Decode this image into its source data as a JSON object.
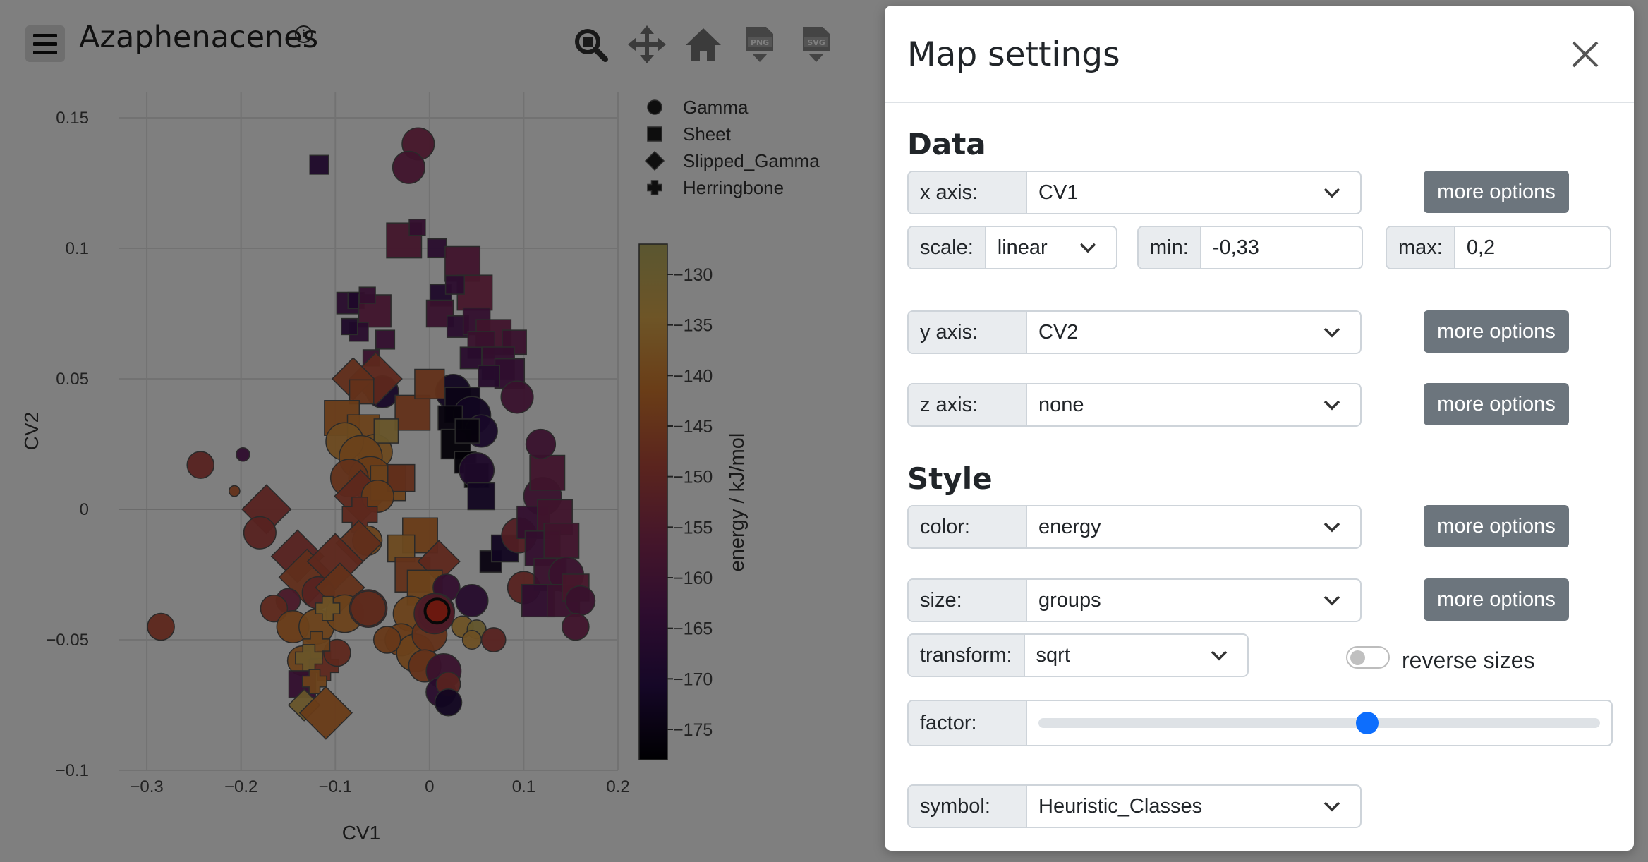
{
  "app": {
    "title": "Azaphenacenes",
    "toolbar": [
      "zoom-icon",
      "pan-icon",
      "home-icon",
      "download-png-icon",
      "download-svg-icon"
    ]
  },
  "chart_data": {
    "type": "scatter",
    "xlabel": "CV1",
    "ylabel": "CV2",
    "xlim": [
      -0.33,
      0.2
    ],
    "ylim": [
      -0.1,
      0.16
    ],
    "x_ticks": [
      "−0.3",
      "−0.2",
      "−0.1",
      "0",
      "0.1",
      "0.2"
    ],
    "x_tick_values": [
      -0.3,
      -0.2,
      -0.1,
      0,
      0.1,
      0.2
    ],
    "y_ticks": [
      "0.15",
      "0.1",
      "0.05",
      "0",
      "−0.05",
      "−0.1"
    ],
    "y_tick_values": [
      0.15,
      0.1,
      0.05,
      0,
      -0.05,
      -0.1
    ],
    "grid": true,
    "legend": [
      {
        "name": "Gamma",
        "symbol": "circle"
      },
      {
        "name": "Sheet",
        "symbol": "square"
      },
      {
        "name": "Slipped_Gamma",
        "symbol": "diamond"
      },
      {
        "name": "Herringbone",
        "symbol": "cross"
      }
    ],
    "legend_position": "top-right",
    "colorbar": {
      "label": "energy / kJ/mol",
      "range": [
        -178,
        -127
      ],
      "ticks": [
        "−130",
        "−135",
        "−140",
        "−145",
        "−150",
        "−155",
        "−160",
        "−165",
        "−170",
        "−175"
      ],
      "tick_values": [
        -130,
        -135,
        -140,
        -145,
        -150,
        -155,
        -160,
        -165,
        -170,
        -175
      ],
      "colorscale": [
        "#000004",
        "#2b0f4e",
        "#5c1a5e",
        "#8b2d55",
        "#b64a3c",
        "#d47a2f",
        "#dcaa4e",
        "#b5ad62"
      ]
    },
    "points": [
      {
        "x": -0.012,
        "y": 0.14,
        "e": -156,
        "s": "circle",
        "r": 12
      },
      {
        "x": -0.022,
        "y": 0.131,
        "e": -158,
        "s": "circle",
        "r": 12
      },
      {
        "x": -0.117,
        "y": 0.132,
        "e": -168,
        "s": "square",
        "r": 7
      },
      {
        "x": -0.027,
        "y": 0.103,
        "e": -157,
        "s": "square",
        "r": 13
      },
      {
        "x": -0.013,
        "y": 0.108,
        "e": -162,
        "s": "square",
        "r": 6
      },
      {
        "x": 0.008,
        "y": 0.1,
        "e": -165,
        "s": "square",
        "r": 7
      },
      {
        "x": 0.035,
        "y": 0.094,
        "e": -158,
        "s": "square",
        "r": 13
      },
      {
        "x": 0.048,
        "y": 0.083,
        "e": -156,
        "s": "square",
        "r": 13
      },
      {
        "x": 0.012,
        "y": 0.082,
        "e": -168,
        "s": "square",
        "r": 8
      },
      {
        "x": 0.027,
        "y": 0.086,
        "e": -164,
        "s": "square",
        "r": 7
      },
      {
        "x": -0.087,
        "y": 0.079,
        "e": -165,
        "s": "square",
        "r": 8
      },
      {
        "x": -0.078,
        "y": 0.08,
        "e": -168,
        "s": "square",
        "r": 6
      },
      {
        "x": -0.058,
        "y": 0.076,
        "e": -158,
        "s": "square",
        "r": 12
      },
      {
        "x": -0.066,
        "y": 0.082,
        "e": -162,
        "s": "square",
        "r": 6
      },
      {
        "x": -0.075,
        "y": 0.068,
        "e": -165,
        "s": "square",
        "r": 7
      },
      {
        "x": -0.062,
        "y": 0.058,
        "e": -160,
        "s": "square",
        "r": 6
      },
      {
        "x": -0.047,
        "y": 0.065,
        "e": -162,
        "s": "square",
        "r": 7
      },
      {
        "x": -0.085,
        "y": 0.07,
        "e": -168,
        "s": "square",
        "r": 6
      },
      {
        "x": 0.011,
        "y": 0.075,
        "e": -160,
        "s": "square",
        "r": 10
      },
      {
        "x": 0.03,
        "y": 0.07,
        "e": -165,
        "s": "square",
        "r": 8
      },
      {
        "x": 0.05,
        "y": 0.072,
        "e": -162,
        "s": "square",
        "r": 10
      },
      {
        "x": 0.068,
        "y": 0.066,
        "e": -158,
        "s": "square",
        "r": 13
      },
      {
        "x": 0.055,
        "y": 0.063,
        "e": -160,
        "s": "square",
        "r": 10
      },
      {
        "x": 0.09,
        "y": 0.064,
        "e": -160,
        "s": "square",
        "r": 9
      },
      {
        "x": 0.044,
        "y": 0.058,
        "e": -165,
        "s": "square",
        "r": 8
      },
      {
        "x": 0.073,
        "y": 0.056,
        "e": -162,
        "s": "square",
        "r": 12
      },
      {
        "x": 0.085,
        "y": 0.052,
        "e": -163,
        "s": "square",
        "r": 11
      },
      {
        "x": 0.063,
        "y": 0.051,
        "e": -166,
        "s": "square",
        "r": 8
      },
      {
        "x": 0.025,
        "y": 0.045,
        "e": -172,
        "s": "circle",
        "r": 13
      },
      {
        "x": 0.035,
        "y": 0.04,
        "e": -174,
        "s": "square",
        "r": 13
      },
      {
        "x": 0.045,
        "y": 0.036,
        "e": -172,
        "s": "circle",
        "r": 14
      },
      {
        "x": 0.022,
        "y": 0.035,
        "e": -176,
        "s": "square",
        "r": 9
      },
      {
        "x": 0.055,
        "y": 0.03,
        "e": -170,
        "s": "circle",
        "r": 12
      },
      {
        "x": 0.028,
        "y": 0.025,
        "e": -177,
        "s": "square",
        "r": 11
      },
      {
        "x": 0.04,
        "y": 0.03,
        "e": -176,
        "s": "square",
        "r": 9
      },
      {
        "x": 0.038,
        "y": 0.018,
        "e": -177,
        "s": "square",
        "r": 8
      },
      {
        "x": 0.05,
        "y": 0.013,
        "e": -178,
        "s": "square",
        "r": 9
      },
      {
        "x": 0.093,
        "y": 0.043,
        "e": -160,
        "s": "circle",
        "r": 12
      },
      {
        "x": -0.05,
        "y": 0.045,
        "e": -170,
        "s": "circle",
        "r": 12
      },
      {
        "x": -0.057,
        "y": 0.05,
        "e": -148,
        "s": "diamond",
        "r": 15
      },
      {
        "x": -0.081,
        "y": 0.05,
        "e": -146,
        "s": "diamond",
        "r": 12
      },
      {
        "x": -0.072,
        "y": 0.045,
        "e": -145,
        "s": "square",
        "r": 9
      },
      {
        "x": -0.018,
        "y": 0.037,
        "e": -145,
        "s": "square",
        "r": 13
      },
      {
        "x": -0.093,
        "y": 0.035,
        "e": -142,
        "s": "square",
        "r": 13
      },
      {
        "x": -0.07,
        "y": 0.03,
        "e": -140,
        "s": "square",
        "r": 12
      },
      {
        "x": -0.058,
        "y": 0.022,
        "e": -138,
        "s": "circle",
        "r": 13
      },
      {
        "x": -0.046,
        "y": 0.03,
        "e": -132,
        "s": "square",
        "r": 9
      },
      {
        "x": -0.09,
        "y": 0.026,
        "e": -138,
        "s": "circle",
        "r": 14
      },
      {
        "x": -0.073,
        "y": 0.02,
        "e": -140,
        "s": "circle",
        "r": 16
      },
      {
        "x": -0.063,
        "y": 0.012,
        "e": -142,
        "s": "circle",
        "r": 16
      },
      {
        "x": -0.085,
        "y": 0.012,
        "e": -145,
        "s": "circle",
        "r": 14
      },
      {
        "x": -0.073,
        "y": 0.005,
        "e": -148,
        "s": "diamond",
        "r": 15
      },
      {
        "x": -0.044,
        "y": 0.01,
        "e": -140,
        "s": "square",
        "r": 13
      },
      {
        "x": -0.03,
        "y": 0.012,
        "e": -146,
        "s": "square",
        "r": 10
      },
      {
        "x": -0.055,
        "y": 0.005,
        "e": -142,
        "s": "circle",
        "r": 12
      },
      {
        "x": -0.074,
        "y": -0.002,
        "e": -148,
        "s": "cross",
        "r": 13
      },
      {
        "x": -0.066,
        "y": -0.012,
        "e": -140,
        "s": "circle",
        "r": 11
      },
      {
        "x": -0.075,
        "y": -0.013,
        "e": -146,
        "s": "diamond",
        "r": 13
      },
      {
        "x": 0.0,
        "y": 0.048,
        "e": -145,
        "s": "square",
        "r": 11
      },
      {
        "x": -0.243,
        "y": 0.017,
        "e": -150,
        "s": "circle",
        "r": 10
      },
      {
        "x": -0.198,
        "y": 0.021,
        "e": -163,
        "s": "circle",
        "r": 5
      },
      {
        "x": -0.207,
        "y": 0.007,
        "e": -145,
        "s": "circle",
        "r": 4
      },
      {
        "x": -0.173,
        "y": 0.0,
        "e": -150,
        "s": "diamond",
        "r": 14
      },
      {
        "x": -0.18,
        "y": -0.009,
        "e": -150,
        "s": "circle",
        "r": 12
      },
      {
        "x": -0.14,
        "y": -0.018,
        "e": -150,
        "s": "diamond",
        "r": 15
      },
      {
        "x": -0.13,
        "y": -0.026,
        "e": -146,
        "s": "diamond",
        "r": 16
      },
      {
        "x": -0.1,
        "y": -0.02,
        "e": -148,
        "s": "diamond",
        "r": 16
      },
      {
        "x": -0.15,
        "y": -0.035,
        "e": -155,
        "s": "circle",
        "r": 9
      },
      {
        "x": -0.118,
        "y": -0.032,
        "e": -150,
        "s": "circle",
        "r": 12
      },
      {
        "x": -0.095,
        "y": -0.03,
        "e": -145,
        "s": "diamond",
        "r": 14
      },
      {
        "x": -0.165,
        "y": -0.038,
        "e": -148,
        "s": "circle",
        "r": 10
      },
      {
        "x": -0.145,
        "y": -0.045,
        "e": -142,
        "s": "circle",
        "r": 12
      },
      {
        "x": -0.12,
        "y": -0.045,
        "e": -140,
        "s": "circle",
        "r": 13
      },
      {
        "x": -0.09,
        "y": -0.04,
        "e": -140,
        "s": "circle",
        "r": 14
      },
      {
        "x": -0.108,
        "y": -0.038,
        "e": -135,
        "s": "cross",
        "r": 9
      },
      {
        "x": -0.135,
        "y": -0.058,
        "e": -140,
        "s": "circle",
        "r": 11
      },
      {
        "x": -0.112,
        "y": -0.06,
        "e": -148,
        "s": "cross",
        "r": 11
      },
      {
        "x": -0.098,
        "y": -0.055,
        "e": -148,
        "s": "circle",
        "r": 10
      },
      {
        "x": -0.12,
        "y": -0.052,
        "e": -140,
        "s": "cross",
        "r": 10
      },
      {
        "x": -0.128,
        "y": -0.057,
        "e": -133,
        "s": "cross",
        "r": 10
      },
      {
        "x": -0.135,
        "y": -0.067,
        "e": -162,
        "s": "square",
        "r": 10
      },
      {
        "x": -0.122,
        "y": -0.066,
        "e": -140,
        "s": "cross",
        "r": 9
      },
      {
        "x": -0.133,
        "y": -0.075,
        "e": -132,
        "s": "diamond",
        "r": 9
      },
      {
        "x": -0.11,
        "y": -0.078,
        "e": -142,
        "s": "diamond",
        "r": 15
      },
      {
        "x": -0.285,
        "y": -0.045,
        "e": -148,
        "s": "circle",
        "r": 10
      },
      {
        "x": -0.065,
        "y": -0.038,
        "e": -150,
        "s": "circle",
        "r": 14
      },
      {
        "x": -0.01,
        "y": -0.01,
        "e": -142,
        "s": "square",
        "r": 13
      },
      {
        "x": -0.03,
        "y": -0.015,
        "e": -138,
        "s": "square",
        "r": 10
      },
      {
        "x": -0.018,
        "y": -0.025,
        "e": -145,
        "s": "square",
        "r": 13
      },
      {
        "x": 0.01,
        "y": -0.02,
        "e": -148,
        "s": "diamond",
        "r": 12
      },
      {
        "x": -0.005,
        "y": -0.03,
        "e": -140,
        "s": "square",
        "r": 13
      },
      {
        "x": -0.02,
        "y": -0.04,
        "e": -140,
        "s": "circle",
        "r": 13
      },
      {
        "x": -0.03,
        "y": -0.05,
        "e": -142,
        "s": "circle",
        "r": 12
      },
      {
        "x": -0.015,
        "y": -0.055,
        "e": -140,
        "s": "circle",
        "r": 14
      },
      {
        "x": 0.0,
        "y": -0.048,
        "e": -145,
        "s": "circle",
        "r": 13
      },
      {
        "x": 0.018,
        "y": -0.03,
        "e": -162,
        "s": "circle",
        "r": 10
      },
      {
        "x": 0.007,
        "y": -0.04,
        "e": -150,
        "s": "circle",
        "r": 13
      },
      {
        "x": -0.005,
        "y": -0.06,
        "e": -145,
        "s": "circle",
        "r": 12
      },
      {
        "x": 0.015,
        "y": -0.062,
        "e": -160,
        "s": "circle",
        "r": 13
      },
      {
        "x": 0.012,
        "y": -0.07,
        "e": -165,
        "s": "circle",
        "r": 11
      },
      {
        "x": 0.02,
        "y": -0.067,
        "e": -150,
        "s": "circle",
        "r": 9
      },
      {
        "x": 0.02,
        "y": -0.074,
        "e": -172,
        "s": "circle",
        "r": 10
      },
      {
        "x": -0.045,
        "y": -0.05,
        "e": -143,
        "s": "circle",
        "r": 10
      },
      {
        "x": -0.065,
        "y": -0.038,
        "e": -147,
        "s": "circle",
        "r": 13
      },
      {
        "x": 0.045,
        "y": -0.035,
        "e": -166,
        "s": "circle",
        "r": 12
      },
      {
        "x": 0.008,
        "y": -0.039,
        "e": -152,
        "s": "circle",
        "r": 13
      },
      {
        "x": 0.035,
        "y": -0.045,
        "e": -135,
        "s": "circle",
        "r": 8
      },
      {
        "x": 0.05,
        "y": -0.046,
        "e": -130,
        "s": "circle",
        "r": 7
      },
      {
        "x": 0.045,
        "y": -0.05,
        "e": -136,
        "s": "circle",
        "r": 7
      },
      {
        "x": 0.068,
        "y": -0.05,
        "e": -150,
        "s": "circle",
        "r": 9
      },
      {
        "x": 0.065,
        "y": -0.02,
        "e": -175,
        "s": "square",
        "r": 8
      },
      {
        "x": 0.08,
        "y": -0.015,
        "e": -172,
        "s": "square",
        "r": 10
      },
      {
        "x": 0.1,
        "y": -0.03,
        "e": -150,
        "s": "circle",
        "r": 12
      },
      {
        "x": 0.095,
        "y": -0.01,
        "e": -152,
        "s": "circle",
        "r": 13
      },
      {
        "x": 0.05,
        "y": 0.015,
        "e": -168,
        "s": "circle",
        "r": 13
      },
      {
        "x": 0.055,
        "y": 0.005,
        "e": -172,
        "s": "square",
        "r": 10
      },
      {
        "x": 0.12,
        "y": 0.005,
        "e": -160,
        "s": "circle",
        "r": 14
      },
      {
        "x": 0.125,
        "y": 0.014,
        "e": -158,
        "s": "square",
        "r": 13
      },
      {
        "x": 0.118,
        "y": 0.025,
        "e": -160,
        "s": "circle",
        "r": 11
      },
      {
        "x": 0.11,
        "y": -0.005,
        "e": -162,
        "s": "square",
        "r": 12
      },
      {
        "x": 0.133,
        "y": -0.003,
        "e": -158,
        "s": "square",
        "r": 13
      },
      {
        "x": 0.12,
        "y": -0.015,
        "e": -162,
        "s": "square",
        "r": 13
      },
      {
        "x": 0.14,
        "y": -0.012,
        "e": -158,
        "s": "square",
        "r": 13
      },
      {
        "x": 0.128,
        "y": -0.025,
        "e": -160,
        "s": "square",
        "r": 12
      },
      {
        "x": 0.145,
        "y": -0.025,
        "e": -160,
        "s": "circle",
        "r": 13
      },
      {
        "x": 0.115,
        "y": -0.035,
        "e": -163,
        "s": "square",
        "r": 12
      },
      {
        "x": 0.142,
        "y": -0.035,
        "e": -160,
        "s": "square",
        "r": 12
      },
      {
        "x": 0.155,
        "y": -0.03,
        "e": -156,
        "s": "square",
        "r": 10
      },
      {
        "x": 0.16,
        "y": -0.035,
        "e": -160,
        "s": "circle",
        "r": 11
      },
      {
        "x": 0.155,
        "y": -0.045,
        "e": -158,
        "s": "circle",
        "r": 10
      },
      {
        "x": 0.005,
        "y": -0.04,
        "e": -154,
        "s": "circle",
        "r": 15
      }
    ]
  },
  "modal": {
    "title": "Map settings",
    "data_section": "Data",
    "style_section": "Style",
    "x_axis": {
      "label": "x axis:",
      "value": "CV1",
      "button": "more options"
    },
    "scale": {
      "label": "scale:",
      "value": "linear"
    },
    "min": {
      "label": "min:",
      "value": "-0,33"
    },
    "max": {
      "label": "max:",
      "value": "0,2"
    },
    "y_axis": {
      "label": "y axis:",
      "value": "CV2",
      "button": "more options"
    },
    "z_axis": {
      "label": "z axis:",
      "value": "none",
      "button": "more options"
    },
    "color": {
      "label": "color:",
      "value": "energy",
      "button": "more options"
    },
    "size": {
      "label": "size:",
      "value": "groups",
      "button": "more options"
    },
    "transform": {
      "label": "transform:",
      "value": "sqrt"
    },
    "reverse_sizes": {
      "label": "reverse sizes",
      "checked": false
    },
    "factor": {
      "label": "factor:",
      "value_fraction": 0.585
    },
    "symbol": {
      "label": "symbol:",
      "value": "Heuristic_Classes"
    }
  }
}
